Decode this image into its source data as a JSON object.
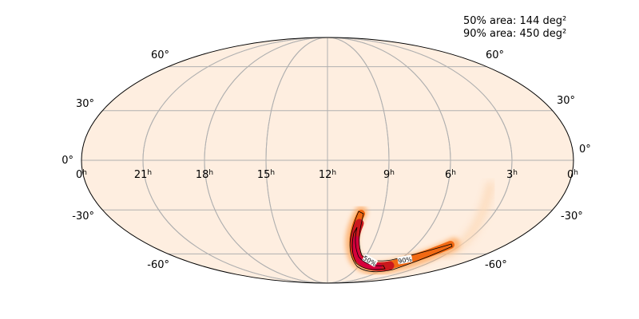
{
  "annotation": {
    "area_50": "50% area: 144 deg²",
    "area_90": "90% area: 450 deg²"
  },
  "projection": "mollweide",
  "colors": {
    "background": "#feeee0",
    "grid": "#b0b0b0",
    "outline": "#000000",
    "cmap_low": "#fdd0a2",
    "cmap_mid": "#f16913",
    "cmap_high": "#a50f15",
    "cmap_peak": "#d6003c"
  },
  "dec_labels": [
    {
      "value": 60,
      "text": "60°"
    },
    {
      "value": 30,
      "text": "30°"
    },
    {
      "value": 0,
      "text": "0°"
    },
    {
      "value": -30,
      "text": "-30°"
    },
    {
      "value": -60,
      "text": "-60°"
    }
  ],
  "ra_labels": [
    {
      "hours": 24,
      "num": "0",
      "sup": "h"
    },
    {
      "hours": 21,
      "num": "21",
      "sup": "h"
    },
    {
      "hours": 18,
      "num": "18",
      "sup": "h"
    },
    {
      "hours": 15,
      "num": "15",
      "sup": "h"
    },
    {
      "hours": 12,
      "num": "12",
      "sup": "h"
    },
    {
      "hours": 9,
      "num": "9",
      "sup": "h"
    },
    {
      "hours": 6,
      "num": "6",
      "sup": "h"
    },
    {
      "hours": 3,
      "num": "3",
      "sup": "h"
    },
    {
      "hours": 0,
      "num": "0",
      "sup": "h"
    }
  ],
  "contours": [
    {
      "level": "50%",
      "label": "50%"
    },
    {
      "level": "90%",
      "label": "90%"
    }
  ]
}
